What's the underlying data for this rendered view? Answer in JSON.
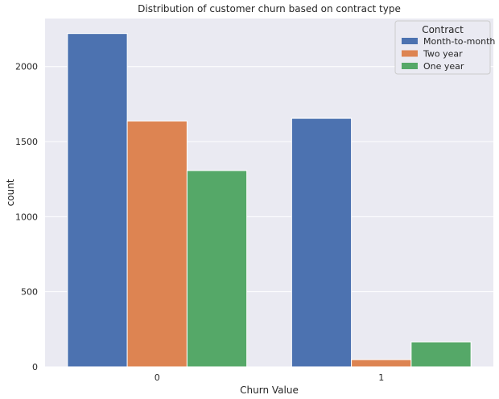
{
  "chart_data": {
    "type": "bar",
    "title": "Distribution of customer churn based on contract type",
    "xlabel": "Churn Value",
    "ylabel": "count",
    "categories": [
      "0",
      "1"
    ],
    "series": [
      {
        "name": "Month-to-month",
        "values": [
          2220,
          1655
        ],
        "color": "#4c72b0"
      },
      {
        "name": "Two year",
        "values": [
          1637,
          48
        ],
        "color": "#dd8452"
      },
      {
        "name": "One year",
        "values": [
          1307,
          166
        ],
        "color": "#55a868"
      }
    ],
    "ylim": [
      0,
      2320
    ],
    "yticks": [
      0,
      500,
      1000,
      1500,
      2000
    ],
    "grid": true,
    "legend": {
      "title": "Contract",
      "placement": "top-right"
    },
    "background": "#eaeaf2"
  }
}
